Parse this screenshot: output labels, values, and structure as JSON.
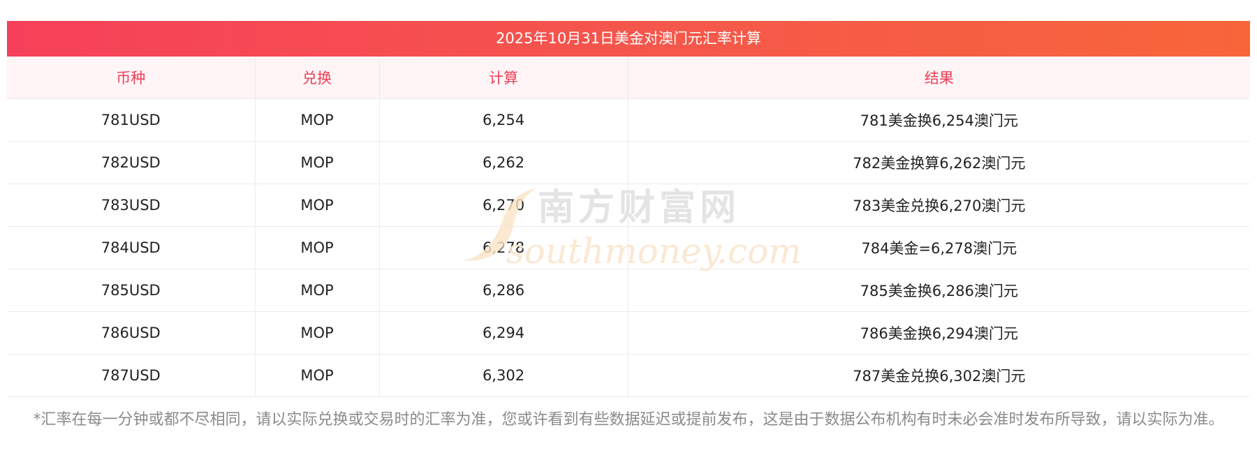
{
  "table": {
    "title": "2025年10月31日美金对澳门元汇率计算",
    "headers": [
      "币种",
      "兑换",
      "计算",
      "结果"
    ],
    "rows": [
      {
        "currency": "781USD",
        "target": "MOP",
        "amount": "6,254",
        "result": "781美金换6,254澳门元"
      },
      {
        "currency": "782USD",
        "target": "MOP",
        "amount": "6,262",
        "result": "782美金换算6,262澳门元"
      },
      {
        "currency": "783USD",
        "target": "MOP",
        "amount": "6,270",
        "result": "783美金兑换6,270澳门元"
      },
      {
        "currency": "784USD",
        "target": "MOP",
        "amount": "6,278",
        "result": "784美金=6,278澳门元"
      },
      {
        "currency": "785USD",
        "target": "MOP",
        "amount": "6,286",
        "result": "785美金换6,286澳门元"
      },
      {
        "currency": "786USD",
        "target": "MOP",
        "amount": "6,294",
        "result": "786美金换6,294澳门元"
      },
      {
        "currency": "787USD",
        "target": "MOP",
        "amount": "6,302",
        "result": "787美金兑换6,302澳门元"
      }
    ]
  },
  "watermark": {
    "brand_cn": "南方财富网",
    "brand_en": "southmoney.com"
  },
  "footnote": "*汇率在每一分钟或都不尽相同，请以实际兑换或交易时的汇率为准，您或许看到有些数据延迟或提前发布，这是由于数据公布机构有时未必会准时发布所导致，请以实际为准。",
  "colors": {
    "title_gradient_start": "#f6405a",
    "title_gradient_end": "#f8653a",
    "header_text": "#ef3d55",
    "header_bg": "#fff5f7",
    "footnote_text": "#8a8a8a"
  }
}
